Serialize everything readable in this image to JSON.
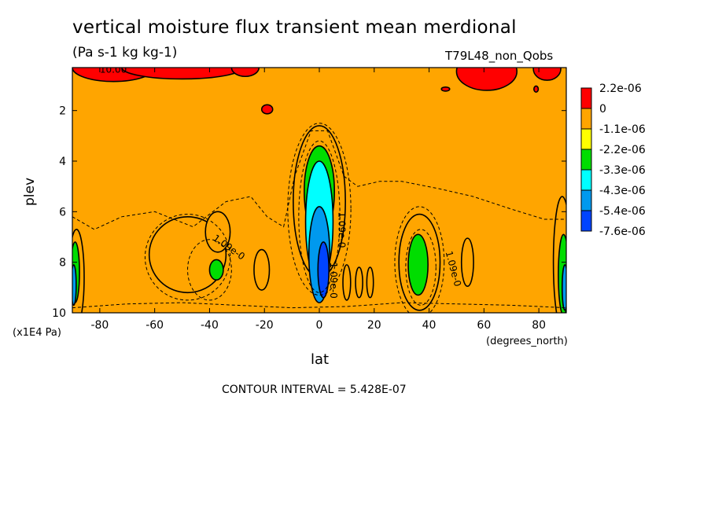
{
  "chart_data": {
    "type": "heatmap",
    "title": "vertical moisture flux transient mean merdional",
    "subtitle": "(Pa s-1 kg kg-1)",
    "annotation": "T79L48_non_Qobs",
    "xlabel": "lat",
    "x_units": "(degrees_north)",
    "ylabel": "plev",
    "y_units": "(x1E4 Pa)",
    "xlim": [
      -90,
      90
    ],
    "ylim": [
      10,
      0.3
    ],
    "x_ticks": [
      -80,
      -60,
      -40,
      -20,
      0,
      20,
      40,
      60,
      80
    ],
    "y_ticks": [
      2,
      4,
      6,
      8,
      10
    ],
    "footer": "CONTOUR INTERVAL = 5.428E-07",
    "contour_labels": [
      "10.00",
      "1.09e-0",
      "1.09e-0",
      "1.09e-0",
      "1.09e-0"
    ],
    "colorbar": {
      "labels": [
        "2.2e-06",
        "0",
        "-1.1e-06",
        "-2.2e-06",
        "-3.3e-06",
        "-4.3e-06",
        "-5.4e-06",
        "-7.6e-06"
      ],
      "colors": [
        "#ff0000",
        "#ffa500",
        "#ffff00",
        "#00dd00",
        "#00ffff",
        "#0099ee",
        "#0044ff"
      ]
    },
    "regions": [
      {
        "level": 1,
        "shape": "ellipse",
        "lat": 0,
        "plev": 5.6,
        "rlat": 9.5,
        "rplev": 3.0
      },
      {
        "level": 3,
        "shape": "ellipse",
        "lat": 0,
        "plev": 5.2,
        "rlat": 5.5,
        "rplev": 1.8
      },
      {
        "level": 4,
        "shape": "ellipse",
        "lat": 0,
        "plev": 6.4,
        "rlat": 5.0,
        "rplev": 2.4
      },
      {
        "level": 5,
        "shape": "ellipse",
        "lat": 0,
        "plev": 7.7,
        "rlat": 3.8,
        "rplev": 1.9
      },
      {
        "level": 6,
        "shape": "ellipse",
        "lat": 1.5,
        "plev": 8.3,
        "rlat": 2.0,
        "rplev": 1.1
      },
      {
        "level": 1,
        "shape": "ellipse",
        "lat": -48,
        "plev": 7.7,
        "rlat": 14,
        "rplev": 1.5
      },
      {
        "level": 1,
        "shape": "ellipse",
        "lat": -37,
        "plev": 6.8,
        "rlat": 4.5,
        "rplev": 0.8
      },
      {
        "level": 3,
        "shape": "ellipse",
        "lat": -37.5,
        "plev": 8.3,
        "rlat": 2.5,
        "rplev": 0.4
      },
      {
        "level": 1,
        "shape": "ellipse",
        "lat": -21,
        "plev": 8.3,
        "rlat": 2.8,
        "rplev": 0.8
      },
      {
        "level": 1,
        "shape": "ellipse",
        "lat": 36.5,
        "plev": 8.0,
        "rlat": 7.5,
        "rplev": 1.9
      },
      {
        "level": 3,
        "shape": "ellipse",
        "lat": 36,
        "plev": 8.1,
        "rlat": 3.6,
        "rplev": 1.2
      },
      {
        "level": 1,
        "shape": "ellipse",
        "lat": 54,
        "plev": 8.0,
        "rlat": 2.2,
        "rplev": 0.95
      },
      {
        "level": 1,
        "shape": "ellipse",
        "lat": 10,
        "plev": 8.8,
        "rlat": 1.4,
        "rplev": 0.7
      },
      {
        "level": 1,
        "shape": "ellipse",
        "lat": 14.5,
        "plev": 8.8,
        "rlat": 1.3,
        "rplev": 0.6
      },
      {
        "level": 1,
        "shape": "ellipse",
        "lat": 18.5,
        "plev": 8.8,
        "rlat": 1.2,
        "rplev": 0.6
      },
      {
        "level": 1,
        "shape": "ellipse",
        "lat": -88.5,
        "plev": 8.6,
        "rlat": 2.8,
        "rplev": 1.9
      },
      {
        "level": 3,
        "shape": "ellipse",
        "lat": -89,
        "plev": 8.4,
        "rlat": 1.6,
        "rplev": 1.2
      },
      {
        "level": 5,
        "shape": "ellipse",
        "lat": -89.5,
        "plev": 8.9,
        "rlat": 0.9,
        "rplev": 0.8
      },
      {
        "level": 1,
        "shape": "ellipse",
        "lat": 88.5,
        "plev": 8.0,
        "rlat": 3.2,
        "rplev": 2.6
      },
      {
        "level": 3,
        "shape": "ellipse",
        "lat": 89,
        "plev": 8.5,
        "rlat": 1.9,
        "rplev": 1.6
      },
      {
        "level": 5,
        "shape": "ellipse",
        "lat": 89.5,
        "plev": 9.0,
        "rlat": 1.0,
        "rplev": 0.9
      },
      {
        "level": 0,
        "shape": "ellipse",
        "lat": -75,
        "plev": 0.3,
        "rlat": 15,
        "rplev": 0.55
      },
      {
        "level": 0,
        "shape": "ellipse",
        "lat": -50,
        "plev": 0.3,
        "rlat": 22,
        "rplev": 0.45
      },
      {
        "level": 0,
        "shape": "ellipse",
        "lat": -27,
        "plev": 0.3,
        "rlat": 5,
        "rplev": 0.35
      },
      {
        "level": 0,
        "shape": "ellipse",
        "lat": 61,
        "plev": 0.45,
        "rlat": 11,
        "rplev": 0.75
      },
      {
        "level": 0,
        "shape": "ellipse",
        "lat": 83,
        "plev": 0.35,
        "rlat": 5,
        "rplev": 0.45
      },
      {
        "level": 0,
        "shape": "ellipse",
        "lat": -19,
        "plev": 1.95,
        "rlat": 2,
        "rplev": 0.18
      },
      {
        "level": 0,
        "shape": "ellipse",
        "lat": 46,
        "plev": 1.15,
        "rlat": 1.5,
        "rplev": 0.08
      },
      {
        "level": 0,
        "shape": "ellipse",
        "lat": 79,
        "plev": 1.15,
        "rlat": 0.8,
        "rplev": 0.12
      }
    ],
    "dashed_contours": [
      {
        "lat": 0,
        "plev": 5.9,
        "rlat": 11.5,
        "rplev": 3.4
      },
      {
        "lat": 0,
        "plev": 6.2,
        "rlat": 7.5,
        "rplev": 3.0
      },
      {
        "lat": -48,
        "plev": 7.8,
        "rlat": 15.5,
        "rplev": 1.7
      },
      {
        "lat": -40,
        "plev": 8.3,
        "rlat": 8,
        "rplev": 1.2
      },
      {
        "lat": 36.5,
        "plev": 8.0,
        "rlat": 9,
        "rplev": 2.2
      },
      {
        "lat": 37,
        "plev": 8.2,
        "rlat": 5.5,
        "rplev": 1.5
      }
    ],
    "outer_dashed_line": [
      [
        -90,
        6.2
      ],
      [
        -82,
        6.7
      ],
      [
        -72,
        6.2
      ],
      [
        -60,
        6.0
      ],
      [
        -46,
        6.6
      ],
      [
        -34,
        5.6
      ],
      [
        -25,
        5.4
      ],
      [
        -19,
        6.2
      ],
      [
        -13,
        6.6
      ],
      [
        -9,
        4.6
      ],
      [
        -3,
        2.8
      ],
      [
        3,
        2.8
      ],
      [
        9,
        4.6
      ],
      [
        14,
        5.0
      ],
      [
        22,
        4.8
      ],
      [
        30,
        4.8
      ],
      [
        44,
        5.1
      ],
      [
        56,
        5.4
      ],
      [
        70,
        5.9
      ],
      [
        82,
        6.3
      ],
      [
        90,
        6.3
      ]
    ],
    "bottom_dashed_line": [
      [
        -90,
        9.8
      ],
      [
        -70,
        9.65
      ],
      [
        -50,
        9.6
      ],
      [
        -30,
        9.7
      ],
      [
        -10,
        9.8
      ],
      [
        10,
        9.75
      ],
      [
        30,
        9.6
      ],
      [
        50,
        9.65
      ],
      [
        70,
        9.7
      ],
      [
        90,
        9.8
      ]
    ],
    "grid": false,
    "legend": "right"
  }
}
